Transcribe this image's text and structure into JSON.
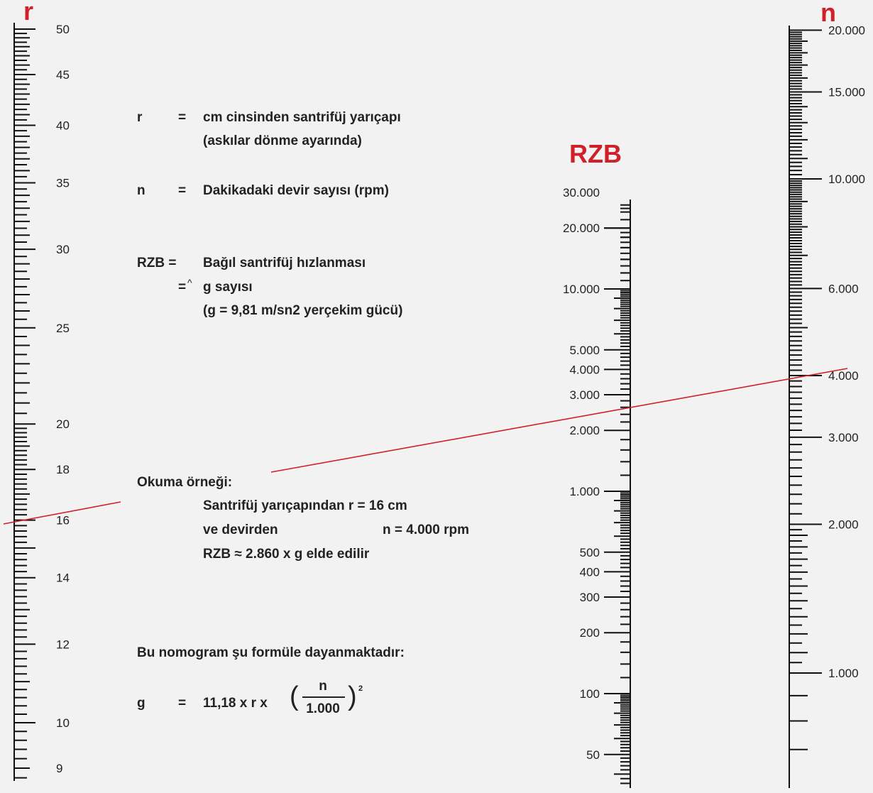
{
  "scales": {
    "r": {
      "title": "r",
      "labels": [
        "50",
        "45",
        "40",
        "35",
        "30",
        "25",
        "20",
        "18",
        "16",
        "14",
        "12",
        "10",
        "9"
      ]
    },
    "rzb": {
      "title": "RZB",
      "labels": [
        "30.000",
        "20.000",
        "10.000",
        "5.000",
        "4.000",
        "3.000",
        "2.000",
        "1.000",
        "500",
        "400",
        "300",
        "200",
        "100",
        "50"
      ]
    },
    "n": {
      "title": "n",
      "labels": [
        "20.000",
        "15.000",
        "10.000",
        "6.000",
        "4.000",
        "3.000",
        "2.000",
        "1.000"
      ]
    }
  },
  "legend": {
    "r_symbol": "r",
    "r_eq": "=",
    "r_def1": "cm cinsinden santrifüj yarıçapı",
    "r_def2": "(askılar dönme ayarında)",
    "n_symbol": "n",
    "n_eq": "=",
    "n_def": "Dakikadaki devir sayısı (rpm)",
    "rzb_symbol": "RZB =",
    "rzb_def1": "Bağıl santrifüj hızlanması",
    "rzb_eq2": "=",
    "rzb_hat": "^",
    "rzb_def2": "g sayısı",
    "rzb_def3": "(g = 9,81 m/sn2 yerçekim gücü)"
  },
  "example": {
    "title": "Okuma örneği:",
    "line1": "Santrifüj yarıçapından r = 16 cm",
    "line2_a": "ve devirden",
    "line2_b": "n = 4.000 rpm",
    "line3": "RZB ≈ 2.860 x g elde edilir",
    "r_value": 16,
    "n_value": 4000,
    "rzb_value": 2860
  },
  "formula": {
    "intro": "Bu nomogram şu formüle dayanmaktadır:",
    "g": "g",
    "eq": "=",
    "expr": "11,18 x r x",
    "num": "n",
    "den": "1.000",
    "paren_open": "(",
    "paren_close": ")",
    "exp": "2"
  },
  "colors": {
    "accent": "#d0202a",
    "ink": "#111111",
    "background": "#f2f2f2"
  }
}
